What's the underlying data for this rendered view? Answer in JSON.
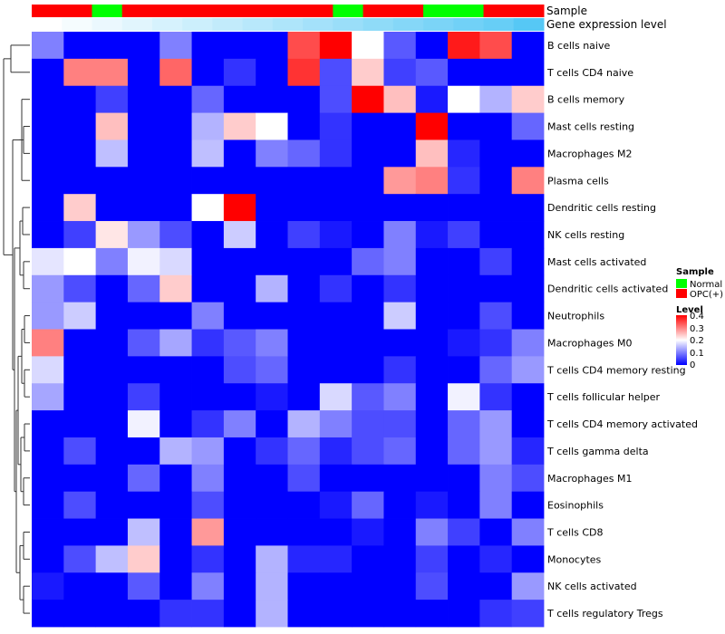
{
  "chart_data": {
    "type": "heatmap",
    "title": "",
    "annotations": {
      "sample_label": "Sample",
      "sample_values": [
        "OPC(+)",
        "OPC(+)",
        "Normal",
        "OPC(+)",
        "OPC(+)",
        "OPC(+)",
        "OPC(+)",
        "OPC(+)",
        "OPC(+)",
        "OPC(+)",
        "Normal",
        "OPC(+)",
        "OPC(+)",
        "Normal",
        "Normal",
        "OPC(+)",
        "OPC(+)"
      ],
      "expression_label": "Gene expression level",
      "expression_values": [
        0.0,
        0.06,
        0.12,
        0.18,
        0.24,
        0.3,
        0.36,
        0.42,
        0.48,
        0.54,
        0.6,
        0.66,
        0.72,
        0.78,
        0.84,
        0.9,
        1.0
      ]
    },
    "rows": [
      "B cells naive",
      "T cells CD4 naive",
      "B cells memory",
      "Mast cells resting",
      "Macrophages M2",
      "Plasma cells",
      "Dendritic cells resting",
      "NK cells resting",
      "Mast cells activated",
      "Dendritic cells activated",
      "Neutrophils",
      "Macrophages M0",
      "T cells CD4 memory resting",
      "T cells follicular helper",
      "T cells CD4 memory activated",
      "T cells gamma delta",
      "Macrophages M1",
      "Eosinophils",
      "T cells CD8",
      "Monocytes",
      "NK cells activated",
      "T cells regulatory  Tregs"
    ],
    "values": [
      [
        0.1,
        0,
        0,
        0,
        0.1,
        0,
        0,
        0,
        0.34,
        0.4,
        0.2,
        0.07,
        0,
        0.38,
        0.34,
        0
      ],
      [
        0,
        0.3,
        0.3,
        0,
        0.32,
        0,
        0.04,
        0,
        0.36,
        0.06,
        0.24,
        0.05,
        0.07,
        0,
        0,
        0
      ],
      [
        0,
        0,
        0.05,
        0,
        0,
        0.08,
        0,
        0,
        0,
        0.06,
        0.4,
        0.25,
        0.02,
        0.2,
        0.14,
        0.24
      ],
      [
        0,
        0,
        0.25,
        0,
        0,
        0.14,
        0.24,
        0.2,
        0,
        0.04,
        0,
        0,
        0.4,
        0,
        0,
        0.08
      ],
      [
        0,
        0,
        0.15,
        0,
        0,
        0.15,
        0,
        0.1,
        0.08,
        0.04,
        0,
        0,
        0.25,
        0.03,
        0,
        0
      ],
      [
        0,
        0,
        0,
        0,
        0,
        0,
        0,
        0,
        0,
        0,
        0,
        0.28,
        0.3,
        0.04,
        0,
        0.3
      ],
      [
        0,
        0.24,
        0,
        0,
        0,
        0.2,
        0.4,
        0,
        0,
        0,
        0,
        0,
        0,
        0,
        0,
        0
      ],
      [
        0,
        0.05,
        0.22,
        0.12,
        0.06,
        0,
        0.16,
        0,
        0.05,
        0.02,
        0,
        0.1,
        0.02,
        0.05,
        0,
        0
      ],
      [
        0.18,
        0.2,
        0.1,
        0.19,
        0.17,
        0,
        0,
        0,
        0,
        0,
        0.08,
        0.1,
        0,
        0,
        0.05,
        0
      ],
      [
        0.12,
        0.06,
        0,
        0.08,
        0.24,
        0,
        0,
        0.14,
        0,
        0.04,
        0,
        0.04,
        0,
        0,
        0,
        0
      ],
      [
        0.12,
        0.16,
        0,
        0,
        0,
        0.1,
        0,
        0,
        0,
        0,
        0,
        0.16,
        0,
        0,
        0.06,
        0
      ],
      [
        0.3,
        0,
        0,
        0.07,
        0.13,
        0.04,
        0.07,
        0.1,
        0,
        0,
        0,
        0,
        0,
        0.02,
        0.04,
        0.1
      ],
      [
        0.17,
        0,
        0,
        0,
        0,
        0,
        0.06,
        0.08,
        0,
        0,
        0,
        0.04,
        0,
        0,
        0.08,
        0.12
      ],
      [
        0.13,
        0,
        0,
        0.05,
        0,
        0,
        0,
        0.02,
        0,
        0.17,
        0.07,
        0.1,
        0,
        0.19,
        0.04,
        0
      ],
      [
        0,
        0,
        0,
        0.19,
        0,
        0.04,
        0.1,
        0,
        0.14,
        0.1,
        0.06,
        0.06,
        0,
        0.08,
        0.12,
        0
      ],
      [
        0,
        0.06,
        0,
        0,
        0.14,
        0.12,
        0,
        0.04,
        0.08,
        0.03,
        0.06,
        0.08,
        0,
        0.08,
        0.12,
        0.03
      ],
      [
        0,
        0,
        0,
        0.08,
        0,
        0.1,
        0,
        0,
        0.06,
        0,
        0,
        0,
        0,
        0,
        0.1,
        0.06
      ],
      [
        0,
        0.06,
        0,
        0,
        0,
        0.06,
        0,
        0,
        0,
        0.02,
        0.08,
        0,
        0.02,
        0,
        0.1,
        0
      ],
      [
        0,
        0,
        0,
        0.15,
        0,
        0.28,
        0,
        0,
        0,
        0,
        0.02,
        0,
        0.1,
        0.05,
        0,
        0.1
      ],
      [
        0,
        0.06,
        0.15,
        0.24,
        0,
        0.04,
        0,
        0.14,
        0.03,
        0.03,
        0,
        0,
        0.05,
        0,
        0.03,
        0
      ],
      [
        0.02,
        0,
        0,
        0.07,
        0,
        0.1,
        0,
        0.14,
        0,
        0,
        0,
        0,
        0.06,
        0,
        0,
        0.12
      ],
      [
        0,
        0,
        0,
        0,
        0.04,
        0.04,
        0,
        0.14,
        0,
        0,
        0,
        0,
        0,
        0,
        0.04,
        0.05
      ]
    ],
    "color_scale": {
      "min": 0,
      "mid": 0.2,
      "max": 0.4,
      "low": "#0000ff",
      "mid_color": "#ffffff",
      "high": "#ff0000"
    },
    "legend": {
      "sample_title": "Sample",
      "sample_items": [
        {
          "label": "Normal",
          "color": "#00ff00"
        },
        {
          "label": "OPC(+)",
          "color": "#ff0000"
        }
      ],
      "level_title": "Level",
      "level_ticks": [
        "0.4",
        "0.3",
        "0.2",
        "0.1",
        "0"
      ]
    },
    "expression_colors": {
      "low": "#ffffff",
      "high": "#56c8f5"
    },
    "legend_position": "right"
  }
}
